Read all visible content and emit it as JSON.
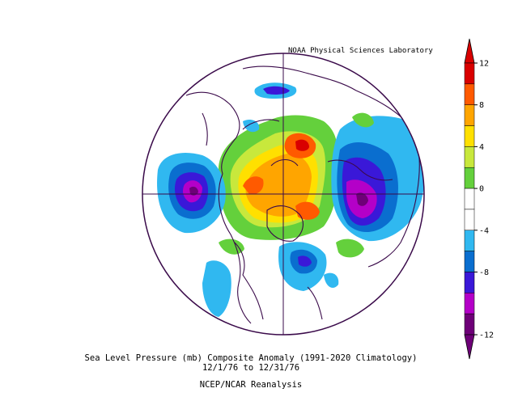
{
  "credit": "NOAA Physical Sciences Laboratory",
  "caption": {
    "line1": "Sea Level Pressure (mb) Composite Anomaly (1991-2020 Climatology)",
    "line2": "12/1/76  to 12/31/76",
    "line3": "NCEP/NCAR Reanalysis"
  },
  "colorbar": {
    "ticks": [
      "12",
      "8",
      "4",
      "0",
      "-4",
      "-8",
      "-12"
    ],
    "colors": [
      "#d90000",
      "#ff5a00",
      "#ffa500",
      "#ffe000",
      "#c8e83c",
      "#64d03c",
      "#ffffff",
      "#ffffff",
      "#30b8f0",
      "#0a6ecf",
      "#3a18d8",
      "#b400c8",
      "#6e0078"
    ]
  },
  "map": {
    "projection": "polar-stereographic-north",
    "variable": "sea-level-pressure-anomaly",
    "units": "mb"
  }
}
